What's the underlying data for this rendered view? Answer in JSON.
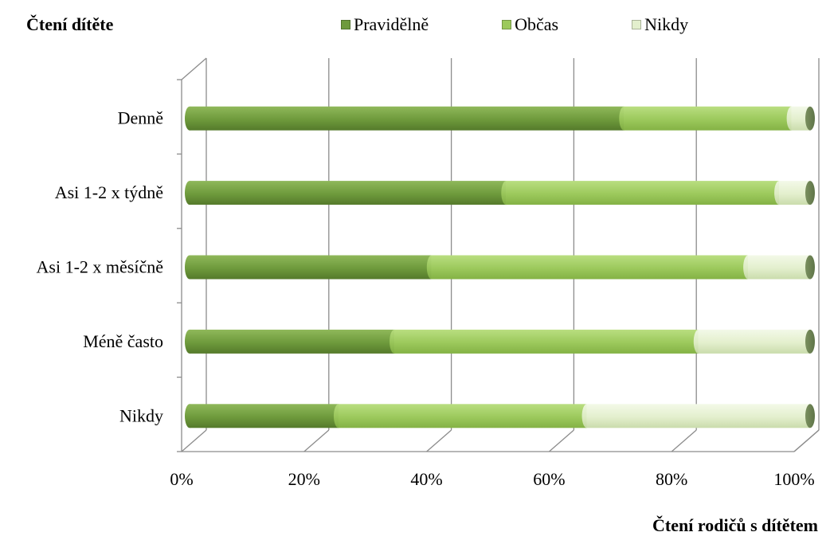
{
  "chart_data": {
    "type": "bar",
    "orientation": "horizontal",
    "stacked": "100%",
    "ylabel": "Čtení dítěte",
    "xlabel": "Čtení rodičů s dítětem",
    "categories": [
      "Denně",
      "Asi 1-2 x týdně",
      "Asi 1-2 x měsíčně",
      "Méně často",
      "Nikdy"
    ],
    "series": [
      {
        "name": "Pravidělně",
        "color": "#6e9a3c",
        "values": [
          70,
          51,
          39,
          33,
          24
        ]
      },
      {
        "name": "Občas",
        "color": "#9cc95c",
        "values": [
          27,
          44,
          51,
          49,
          40
        ]
      },
      {
        "name": "Nikdy",
        "color": "#e3efcd",
        "values": [
          3,
          5,
          10,
          18,
          36
        ]
      }
    ],
    "xticks": [
      "0%",
      "20%",
      "40%",
      "60%",
      "80%",
      "100%"
    ],
    "xlim": [
      0,
      100
    ],
    "grid": true,
    "legend_position": "top"
  }
}
